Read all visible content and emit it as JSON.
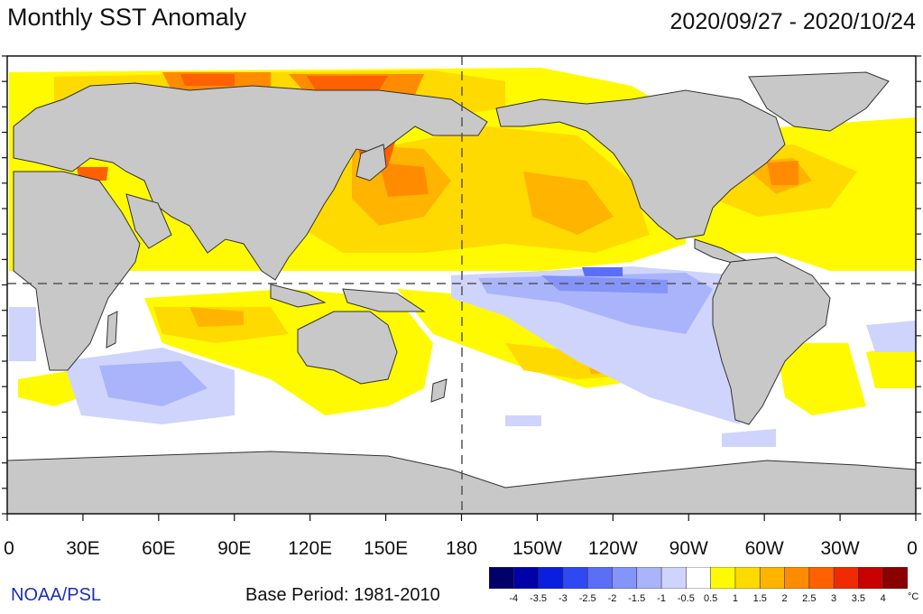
{
  "title": "Monthly SST Anomaly",
  "date_range": "2020/09/27 - 2020/10/24",
  "longitude_labels": [
    "0",
    "30E",
    "60E",
    "90E",
    "120E",
    "150E",
    "180",
    "150W",
    "120W",
    "90W",
    "60W",
    "30W",
    "0"
  ],
  "credit": "NOAA/PSL",
  "base_period": "Base Period: 1981-2010",
  "colorbar": {
    "labels": [
      "-4",
      "-3.5",
      "-3",
      "-2.5",
      "-2",
      "-1.5",
      "-1",
      "-0.5",
      "0.5",
      "1",
      "1.5",
      "2",
      "2.5",
      "3",
      "3.5",
      "4"
    ],
    "unit": "°C",
    "colors": [
      "#000068",
      "#0000a8",
      "#0a1ee0",
      "#2f48f4",
      "#5a6ef8",
      "#8594f8",
      "#a9b4fa",
      "#cfd4fc",
      "#ffffff",
      "#fffa00",
      "#ffda00",
      "#ffb400",
      "#ff8c00",
      "#ff6000",
      "#f02a00",
      "#c80000",
      "#8a0000"
    ]
  },
  "map": {
    "land_color": "#c8c8c8",
    "ocean_neutral": "#ffffff",
    "warm_colors": [
      "#fffa00",
      "#ffda00",
      "#ffb400",
      "#ff8c00",
      "#ff6000",
      "#d81e00"
    ],
    "cool_colors": [
      "#cfd4fc",
      "#a9b4fa",
      "#8594f8",
      "#5a6ef8"
    ]
  }
}
